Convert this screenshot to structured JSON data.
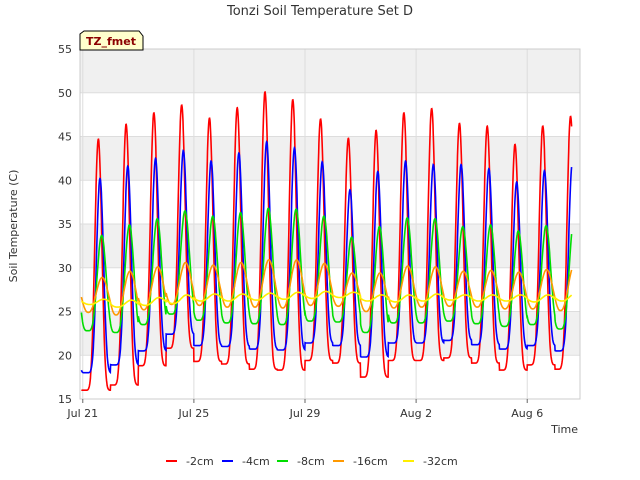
{
  "chart_data": {
    "type": "line",
    "title": "Tonzi Soil Temperature Set D",
    "xlabel": "Time",
    "ylabel": "Soil Temperature (C)",
    "tag": "TZ_fmet",
    "xlim": [
      -0.1,
      17.9
    ],
    "ylim": [
      15,
      55
    ],
    "yticks": [
      15,
      20,
      25,
      30,
      35,
      40,
      45,
      50,
      55
    ],
    "xticks": [
      {
        "day": 0,
        "label": "Jul 21"
      },
      {
        "day": 4,
        "label": "Jul 25"
      },
      {
        "day": 8,
        "label": "Jul 29"
      },
      {
        "day": 12,
        "label": "Aug 2"
      },
      {
        "day": 16,
        "label": "Aug 6"
      }
    ],
    "grid": true,
    "legend_position": "bottom-center",
    "band_color": "#f0f0f0",
    "days": [
      "Jul 21",
      "Jul 22",
      "Jul 23",
      "Jul 24",
      "Jul 25",
      "Jul 26",
      "Jul 27",
      "Jul 28",
      "Jul 29",
      "Jul 30",
      "Jul 31",
      "Aug 1",
      "Aug 2",
      "Aug 3",
      "Aug 4",
      "Aug 5",
      "Aug 6",
      "Aug 7"
    ],
    "series": [
      {
        "name": "-2cm",
        "color": "#ff0000",
        "daily_max": [
          44.7,
          46.4,
          47.7,
          48.6,
          47.1,
          48.3,
          50.1,
          49.2,
          47.0,
          44.8,
          45.7,
          47.7,
          48.2,
          46.5,
          46.2,
          44.1,
          46.2,
          47.3
        ],
        "daily_min": [
          16.0,
          16.6,
          18.8,
          20.8,
          19.3,
          19.0,
          18.4,
          18.3,
          19.4,
          19.1,
          17.5,
          19.4,
          19.4,
          19.7,
          19.1,
          18.3,
          18.9,
          18.4
        ]
      },
      {
        "name": "-4cm",
        "color": "#0000ff",
        "daily_max": [
          40.2,
          41.6,
          42.5,
          43.4,
          42.2,
          43.1,
          44.4,
          43.7,
          42.1,
          38.9,
          41.0,
          42.2,
          41.8,
          41.8,
          41.3,
          39.8,
          41.1,
          41.9
        ],
        "daily_min": [
          18.0,
          18.9,
          20.5,
          22.4,
          21.1,
          21.0,
          20.7,
          20.6,
          21.4,
          21.1,
          19.8,
          21.4,
          21.4,
          21.7,
          21.2,
          20.7,
          21.1,
          20.5
        ]
      },
      {
        "name": "-8cm",
        "color": "#00dd00",
        "daily_max": [
          33.7,
          34.9,
          35.6,
          36.5,
          35.9,
          36.3,
          36.8,
          36.7,
          35.9,
          33.5,
          34.7,
          35.7,
          35.6,
          34.7,
          34.9,
          34.2,
          34.8,
          35.5
        ],
        "daily_min": [
          22.8,
          22.6,
          23.5,
          24.7,
          24.0,
          23.7,
          23.6,
          23.5,
          23.9,
          23.8,
          22.6,
          23.7,
          23.7,
          23.9,
          23.6,
          23.3,
          23.5,
          23.0
        ]
      },
      {
        "name": "-16cm",
        "color": "#ff9900",
        "daily_max": [
          28.9,
          29.6,
          30.1,
          30.6,
          30.3,
          30.6,
          30.9,
          30.9,
          30.5,
          29.4,
          29.4,
          30.2,
          30.1,
          29.6,
          29.7,
          29.5,
          29.8,
          30.4
        ],
        "daily_min": [
          24.9,
          24.6,
          25.2,
          25.8,
          25.7,
          25.5,
          25.5,
          25.4,
          25.7,
          25.6,
          25.0,
          25.4,
          25.5,
          25.6,
          25.5,
          25.3,
          25.3,
          25.1
        ]
      },
      {
        "name": "-32cm",
        "color": "#ffee00",
        "daily_max": [
          26.4,
          26.3,
          26.6,
          26.9,
          27.0,
          27.0,
          27.1,
          27.2,
          27.3,
          27.2,
          26.9,
          26.9,
          27.0,
          26.9,
          26.9,
          26.9,
          26.9,
          27.1
        ],
        "daily_min": [
          25.8,
          25.5,
          25.7,
          25.9,
          26.2,
          26.2,
          26.3,
          26.4,
          26.5,
          26.6,
          26.2,
          26.1,
          26.2,
          26.3,
          26.2,
          26.2,
          26.1,
          26.2
        ]
      }
    ]
  }
}
